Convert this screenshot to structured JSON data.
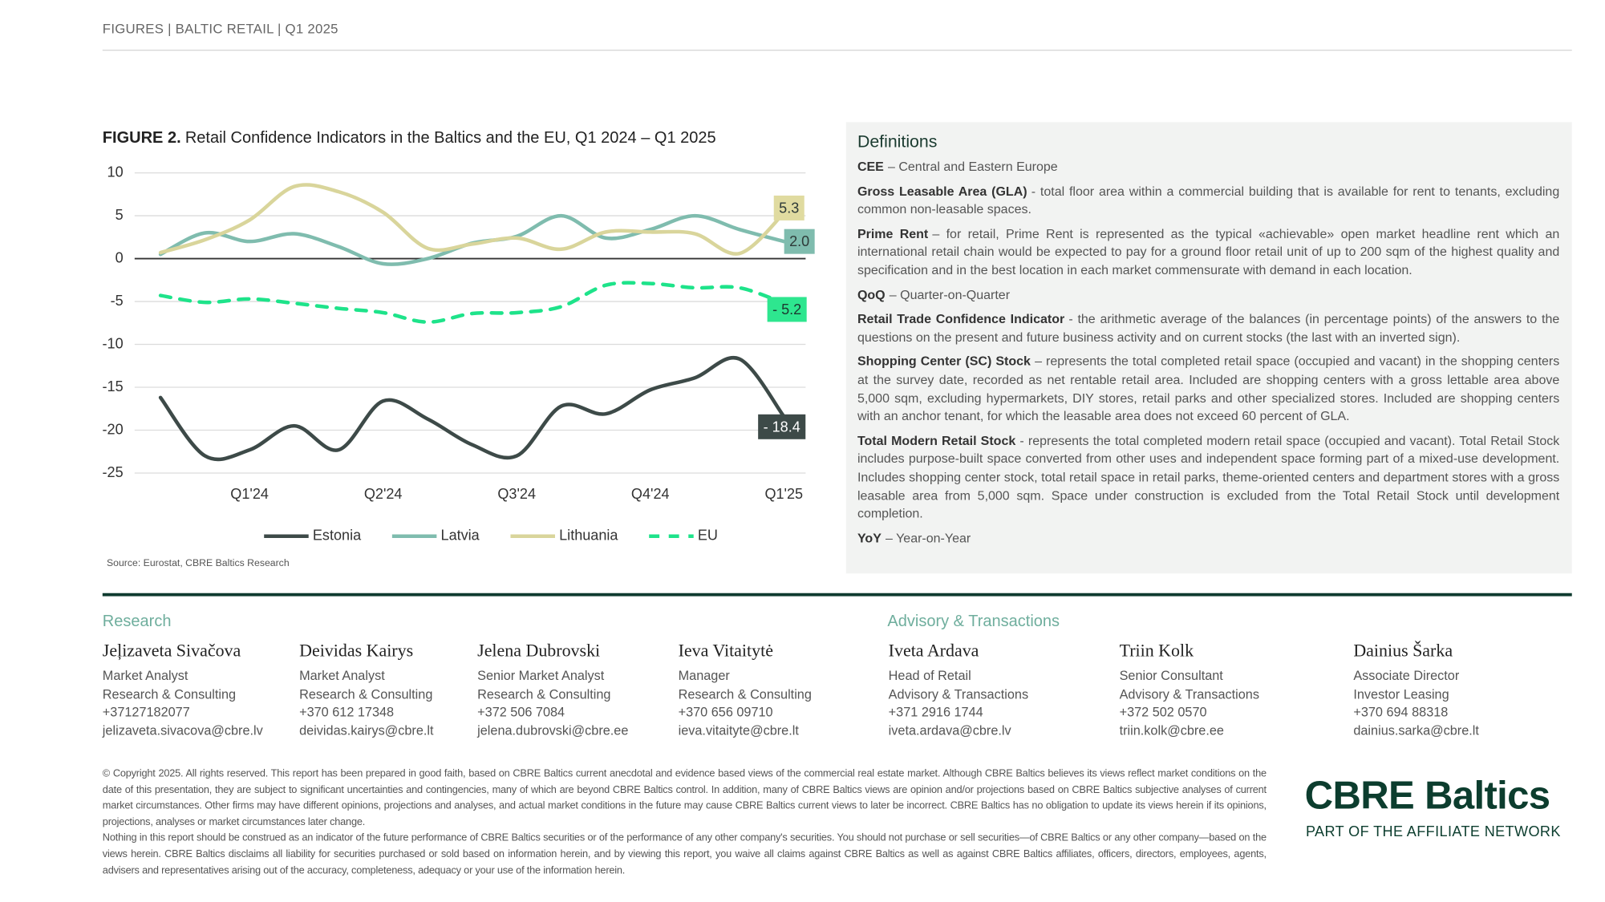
{
  "header": {
    "title": "FIGURES  |  BALTIC RETAIL |  Q1 2025"
  },
  "chart_data": {
    "type": "line",
    "title_label": "FIGURE 2.",
    "title": "Retail Confidence Indicators in the Baltics and the EU, Q1 2024 – Q1 2025",
    "source": "Source: Eurostat, CBRE Baltics Research",
    "categories": [
      null,
      null,
      "Q1'24",
      null,
      null,
      "Q2'24",
      null,
      null,
      "Q3'24",
      null,
      null,
      "Q4'24",
      null,
      null,
      "Q1'25"
    ],
    "ylim": [
      -25,
      10
    ],
    "yticks": [
      10,
      5,
      0,
      -5,
      -10,
      -15,
      -20,
      -25
    ],
    "grid": true,
    "legend": "bottom",
    "series": [
      {
        "name": "Estonia",
        "color": "#3d4a48",
        "dashed": false,
        "values": [
          -16.2,
          -23,
          -22.3,
          -19.5,
          -22.3,
          -16.6,
          -18.7,
          -21.7,
          -23,
          -17.2,
          -18.1,
          -15.3,
          -13.9,
          -11.7,
          -18.4
        ],
        "value_labels": [
          null,
          null,
          null,
          null,
          null,
          null,
          null,
          null,
          null,
          null,
          null,
          null,
          null,
          null,
          "- 18.4"
        ]
      },
      {
        "name": "Latvia",
        "color": "#7fbcae",
        "dashed": false,
        "values": [
          0.5,
          3,
          2,
          2.9,
          1.4,
          -0.6,
          0,
          1.8,
          2.6,
          5,
          2.4,
          3.4,
          5,
          3.4,
          2
        ],
        "value_labels": [
          null,
          null,
          null,
          null,
          null,
          null,
          null,
          null,
          null,
          null,
          null,
          null,
          null,
          null,
          "2.0"
        ]
      },
      {
        "name": "Lithuania",
        "color": "#d9d59b",
        "dashed": false,
        "values": [
          0.7,
          2.2,
          4.5,
          8.4,
          7.8,
          5.4,
          1.2,
          1.7,
          2.4,
          1.1,
          3.1,
          3.1,
          2.9,
          0.6,
          5.3
        ],
        "value_labels": [
          null,
          null,
          null,
          null,
          null,
          null,
          null,
          null,
          null,
          null,
          null,
          null,
          null,
          null,
          "5.3"
        ]
      },
      {
        "name": "EU",
        "color": "#1ee38a",
        "dashed": true,
        "values": [
          -4.3,
          -5.1,
          -4.7,
          -5.2,
          -5.8,
          -6.3,
          -7.4,
          -6.4,
          -6.3,
          -5.6,
          -3.1,
          -2.9,
          -3.4,
          -3.4,
          -5.2
        ],
        "value_labels": [
          null,
          null,
          null,
          null,
          null,
          null,
          null,
          null,
          null,
          null,
          null,
          null,
          null,
          null,
          "- 5.2"
        ]
      }
    ]
  },
  "definitions": {
    "title": "Definitions",
    "items": [
      {
        "term": "CEE",
        "text": "– Central and Eastern Europe"
      },
      {
        "term": "Gross Leasable Area (GLA)",
        "text": "-  total floor area within a commercial building that is available for rent to tenants, excluding common non-leasable spaces."
      },
      {
        "term": "Prime Rent",
        "text": "– for retail, Prime Rent is represented as the typical «achievable» open market headline rent which an international retail chain would be expected to pay for a ground floor retail unit of up to 200 sqm of the highest quality and specification and in the best location in each market commensurate with demand in each location."
      },
      {
        "term": "QoQ",
        "text": "– Quarter-on-Quarter"
      },
      {
        "term": "Retail Trade Confidence Indicator",
        "text": "- the arithmetic average of the balances (in percentage points) of the answers to the questions on the present and future business activity and on current stocks (the last with an inverted sign)."
      },
      {
        "term": "Shopping Center (SC) Stock",
        "text": "– represents the total completed retail space (occupied and vacant) in the shopping centers at the survey date, recorded as net rentable retail area. Included are shopping centers with a  gross lettable area above 5,000 sqm, excluding hypermarkets, DIY stores, retail parks and other specialized stores. Included are shopping centers with an anchor tenant, for which the leasable area does not exceed 60 percent of GLA."
      },
      {
        "term": "Total Modern Retail Stock",
        "text": "- represents the total completed modern retail space (occupied and vacant). Total Retail Stock includes purpose-built space converted from other uses and independent space forming part of a mixed-use development. Includes shopping center stock, total retail space in retail parks, theme-oriented centers and department stores with a gross leasable area from 5,000 sqm. Space under construction is excluded from the Total Retail Stock until development completion."
      },
      {
        "term": "YoY",
        "text": "– Year-on-Year"
      }
    ]
  },
  "contacts": {
    "groups": [
      "Research",
      "Advisory & Transactions"
    ],
    "people": [
      {
        "name": "Jeļizaveta Sivačova",
        "role": "Market Analyst",
        "dept": "Research & Consulting",
        "phone": "+37127182077",
        "email": "jelizaveta.sivacova@cbre.lv"
      },
      {
        "name": "Deividas Kairys",
        "role": "Market Analyst",
        "dept": "Research & Consulting",
        "phone": "+370 612 17348",
        "email": "deividas.kairys@cbre.lt"
      },
      {
        "name": "Jelena Dubrovski",
        "role": "Senior Market Analyst",
        "dept": "Research & Consulting",
        "phone": "+372 506 7084",
        "email": "jelena.dubrovski@cbre.ee"
      },
      {
        "name": "Ieva Vitaitytė",
        "role": "Manager",
        "dept": "Research & Consulting",
        "phone": "+370 656 09710",
        "email": "ieva.vitaityte@cbre.lt"
      },
      {
        "name": "Iveta Ardava",
        "role": "Head of Retail",
        "dept": "Advisory & Transactions",
        "phone": "+371 2916 1744",
        "email": "iveta.ardava@cbre.lv"
      },
      {
        "name": "Triin Kolk",
        "role": "Senior Consultant",
        "dept": "Advisory & Transactions",
        "phone": "+372 502 0570",
        "email": "triin.kolk@cbre.ee"
      },
      {
        "name": "Dainius Šarka",
        "role": "Associate Director",
        "dept": "Investor Leasing",
        "phone": "+370 694 88318",
        "email": "dainius.sarka@cbre.lt"
      }
    ]
  },
  "footer": {
    "paragraphs": [
      "© Copyright 2025. All rights reserved. This report has been prepared in good faith, based on CBRE Baltics current anecdotal and evidence based views of the commercial real estate market. Although CBRE Baltics believes its views reflect market conditions on the date of this presentation, they are subject to significant uncertainties and contingencies, many of which are beyond CBRE Baltics control. In addition, many of CBRE Baltics views are opinion and/or projections based on CBRE Baltics subjective analyses of current market circumstances. Other firms may have different opinions, projections and analyses, and actual market conditions in the future may cause CBRE Baltics current views to later be incorrect. CBRE Baltics has no obligation to update its views herein if its opinions, projections, analyses or market circumstances later change.",
      "Nothing in this report should be construed as an indicator of the future performance of CBRE Baltics securities or of the performance of any other company's securities. You should not purchase or sell securities—of CBRE Baltics or any other company—based on the views herein. CBRE Baltics disclaims all liability for securities purchased or sold based on information herein, and by viewing this report, you waive all claims against CBRE Baltics as well as against CBRE Baltics affiliates, officers, directors, employees, agents, advisers and representatives arising out of the accuracy, completeness, adequacy or your use of the information herein."
    ]
  },
  "logo": {
    "name": "CBRE Baltics",
    "tagline": "PART OF THE AFFILIATE NETWORK"
  }
}
